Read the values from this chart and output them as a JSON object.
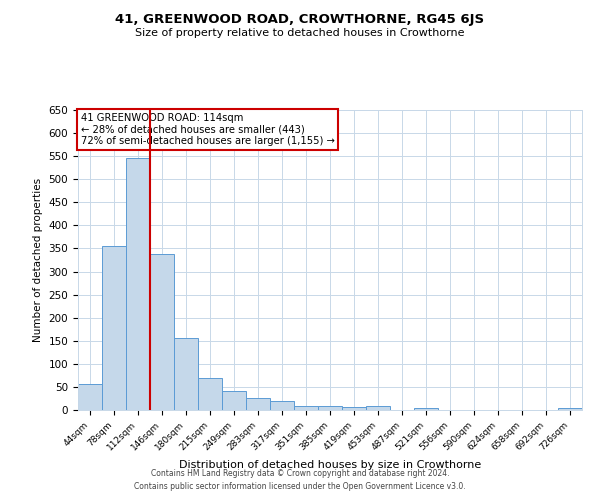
{
  "title": "41, GREENWOOD ROAD, CROWTHORNE, RG45 6JS",
  "subtitle": "Size of property relative to detached houses in Crowthorne",
  "xlabel": "Distribution of detached houses by size in Crowthorne",
  "ylabel": "Number of detached properties",
  "bar_labels": [
    "44sqm",
    "78sqm",
    "112sqm",
    "146sqm",
    "180sqm",
    "215sqm",
    "249sqm",
    "283sqm",
    "317sqm",
    "351sqm",
    "385sqm",
    "419sqm",
    "453sqm",
    "487sqm",
    "521sqm",
    "556sqm",
    "590sqm",
    "624sqm",
    "658sqm",
    "692sqm",
    "726sqm"
  ],
  "bar_values": [
    57,
    355,
    545,
    338,
    155,
    69,
    42,
    25,
    20,
    9,
    8,
    6,
    9,
    0,
    4,
    0,
    0,
    0,
    0,
    0,
    4
  ],
  "bar_color": "#c5d8ea",
  "bar_edge_color": "#5b9bd5",
  "ylim": [
    0,
    650
  ],
  "yticks": [
    0,
    50,
    100,
    150,
    200,
    250,
    300,
    350,
    400,
    450,
    500,
    550,
    600,
    650
  ],
  "property_line_color": "#cc0000",
  "annotation_title": "41 GREENWOOD ROAD: 114sqm",
  "annotation_line1": "← 28% of detached houses are smaller (443)",
  "annotation_line2": "72% of semi-detached houses are larger (1,155) →",
  "annotation_box_color": "#cc0000",
  "footnote1": "Contains HM Land Registry data © Crown copyright and database right 2024.",
  "footnote2": "Contains public sector information licensed under the Open Government Licence v3.0.",
  "bg_color": "#ffffff",
  "grid_color": "#c8d8e8"
}
